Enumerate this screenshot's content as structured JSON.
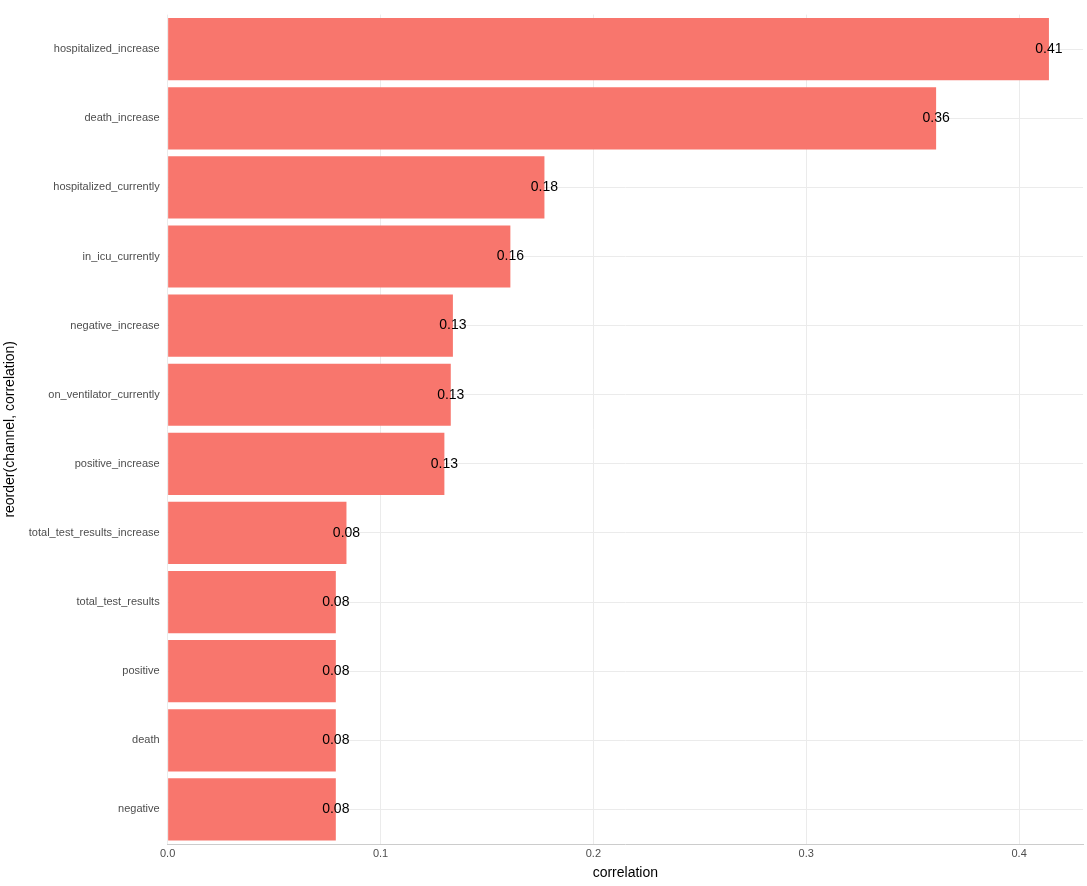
{
  "chart_data": {
    "type": "bar",
    "orientation": "horizontal",
    "x_label": "correlation",
    "y_label": "reorder(channel, correlation)",
    "categories": [
      "hospitalized_increase",
      "death_increase",
      "hospitalized_currently",
      "in_icu_currently",
      "negative_increase",
      "on_ventilator_currently",
      "positive_increase",
      "total_test_results_increase",
      "total_test_results",
      "positive",
      "death",
      "negative"
    ],
    "values": [
      0.414,
      0.361,
      0.177,
      0.161,
      0.134,
      0.133,
      0.13,
      0.084,
      0.079,
      0.079,
      0.079,
      0.079
    ],
    "value_labels": [
      "0.41",
      "0.36",
      "0.18",
      "0.16",
      "0.13",
      "0.13",
      "0.13",
      "0.08",
      "0.08",
      "0.08",
      "0.08",
      "0.08"
    ],
    "data_labels": true,
    "color": "#F8766D",
    "xlim": [
      0,
      0.43
    ],
    "xticks": [
      {
        "value": 0,
        "label": "0.0"
      },
      0.1,
      0.2,
      0.3,
      0.4
    ],
    "grid": true
  }
}
